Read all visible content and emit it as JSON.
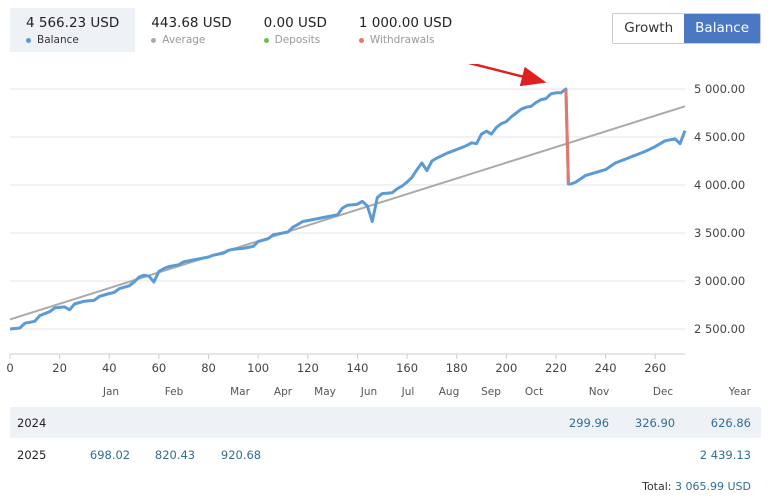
{
  "stats": [
    {
      "value": "4 566.23 USD",
      "label": "Balance",
      "color": "#5b9bd5",
      "active": true
    },
    {
      "value": "443.68 USD",
      "label": "Average",
      "color": "#aaaaaa",
      "active": false
    },
    {
      "value": "0.00 USD",
      "label": "Deposits",
      "color": "#6cbf4a",
      "active": false
    },
    {
      "value": "1 000.00 USD",
      "label": "Withdrawals",
      "color": "#e07a6a",
      "active": false
    }
  ],
  "toggle": {
    "growth": "Growth",
    "balance": "Balance"
  },
  "chart_data": {
    "type": "line",
    "xlim": [
      0,
      272
    ],
    "ylim": [
      2350,
      5150
    ],
    "x_ticks": [
      0,
      20,
      40,
      60,
      80,
      100,
      120,
      140,
      160,
      180,
      200,
      220,
      240,
      260
    ],
    "y_ticks": [
      2500,
      3000,
      3500,
      4000,
      4500,
      5000
    ],
    "y_tick_labels": [
      "2 500.00",
      "3 000.00",
      "3 500.00",
      "4 000.00",
      "4 500.00",
      "5 000.00"
    ],
    "grid": true,
    "series": [
      {
        "name": "Balance",
        "color": "#5b9bd5",
        "points": [
          [
            0,
            2500
          ],
          [
            4,
            2510
          ],
          [
            6,
            2560
          ],
          [
            10,
            2580
          ],
          [
            12,
            2640
          ],
          [
            16,
            2680
          ],
          [
            18,
            2720
          ],
          [
            22,
            2730
          ],
          [
            24,
            2700
          ],
          [
            26,
            2760
          ],
          [
            30,
            2790
          ],
          [
            34,
            2800
          ],
          [
            36,
            2840
          ],
          [
            40,
            2870
          ],
          [
            42,
            2880
          ],
          [
            44,
            2920
          ],
          [
            48,
            2950
          ],
          [
            50,
            2990
          ],
          [
            52,
            3040
          ],
          [
            54,
            3060
          ],
          [
            56,
            3050
          ],
          [
            58,
            2990
          ],
          [
            60,
            3100
          ],
          [
            62,
            3130
          ],
          [
            64,
            3150
          ],
          [
            68,
            3170
          ],
          [
            70,
            3200
          ],
          [
            74,
            3220
          ],
          [
            78,
            3240
          ],
          [
            80,
            3250
          ],
          [
            82,
            3270
          ],
          [
            86,
            3290
          ],
          [
            88,
            3320
          ],
          [
            90,
            3330
          ],
          [
            94,
            3340
          ],
          [
            98,
            3360
          ],
          [
            100,
            3410
          ],
          [
            104,
            3440
          ],
          [
            106,
            3480
          ],
          [
            110,
            3500
          ],
          [
            112,
            3510
          ],
          [
            114,
            3560
          ],
          [
            116,
            3590
          ],
          [
            118,
            3620
          ],
          [
            122,
            3640
          ],
          [
            126,
            3660
          ],
          [
            130,
            3680
          ],
          [
            132,
            3690
          ],
          [
            134,
            3760
          ],
          [
            136,
            3790
          ],
          [
            140,
            3800
          ],
          [
            142,
            3830
          ],
          [
            144,
            3780
          ],
          [
            146,
            3620
          ],
          [
            148,
            3870
          ],
          [
            150,
            3910
          ],
          [
            154,
            3920
          ],
          [
            156,
            3960
          ],
          [
            158,
            3990
          ],
          [
            160,
            4030
          ],
          [
            162,
            4080
          ],
          [
            164,
            4160
          ],
          [
            166,
            4230
          ],
          [
            168,
            4150
          ],
          [
            170,
            4250
          ],
          [
            172,
            4280
          ],
          [
            176,
            4330
          ],
          [
            180,
            4370
          ],
          [
            184,
            4410
          ],
          [
            186,
            4440
          ],
          [
            188,
            4430
          ],
          [
            190,
            4530
          ],
          [
            192,
            4560
          ],
          [
            194,
            4530
          ],
          [
            196,
            4600
          ],
          [
            198,
            4640
          ],
          [
            200,
            4660
          ],
          [
            202,
            4710
          ],
          [
            204,
            4750
          ],
          [
            206,
            4790
          ],
          [
            208,
            4810
          ],
          [
            210,
            4820
          ],
          [
            212,
            4860
          ],
          [
            214,
            4890
          ],
          [
            216,
            4900
          ],
          [
            218,
            4950
          ],
          [
            220,
            4960
          ],
          [
            222,
            4960
          ],
          [
            224,
            5000
          ],
          [
            225,
            4010
          ],
          [
            226,
            4010
          ],
          [
            228,
            4030
          ],
          [
            232,
            4100
          ],
          [
            236,
            4130
          ],
          [
            240,
            4160
          ],
          [
            244,
            4230
          ],
          [
            248,
            4270
          ],
          [
            252,
            4310
          ],
          [
            256,
            4350
          ],
          [
            260,
            4400
          ],
          [
            264,
            4460
          ],
          [
            268,
            4480
          ],
          [
            270,
            4430
          ],
          [
            272,
            4566
          ]
        ]
      },
      {
        "name": "Average",
        "color": "#aaaaaa",
        "points": [
          [
            0,
            2600
          ],
          [
            272,
            4820
          ]
        ]
      },
      {
        "name": "Withdrawals",
        "color": "#e07a6a",
        "points": [
          [
            224,
            5000
          ],
          [
            225,
            4010
          ]
        ]
      }
    ]
  },
  "months": [
    "Jan",
    "Feb",
    "Mar",
    "Apr",
    "May",
    "Jun",
    "Jul",
    "Aug",
    "Sep",
    "Oct",
    "Nov",
    "Dec"
  ],
  "year_header": "Year",
  "table": [
    {
      "year": "2024",
      "cells": [
        "",
        "",
        "",
        "",
        "",
        "",
        "",
        "",
        "",
        "",
        "299.96",
        "326.90"
      ],
      "total": "626.86"
    },
    {
      "year": "2025",
      "cells": [
        "698.02",
        "820.43",
        "920.68",
        "",
        "",
        "",
        "",
        "",
        "",
        "",
        "",
        ""
      ],
      "total": "2 439.13"
    }
  ],
  "grand_total": {
    "label": "Total:",
    "value": "3 065.99 USD"
  }
}
